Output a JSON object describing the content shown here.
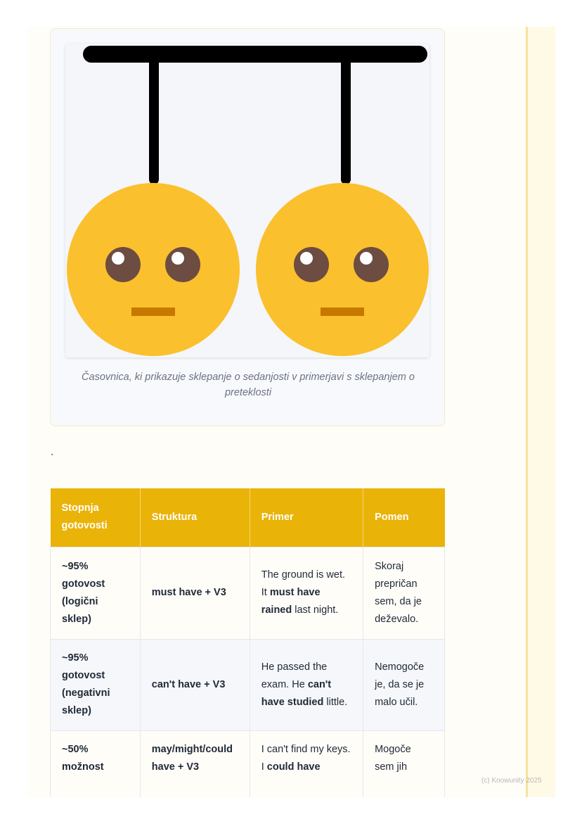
{
  "figure": {
    "caption": "Časovnica, ki prikazuje sklepanje o sedanjosti v primerjavi s sklepanjem o preteklosti",
    "colors": {
      "face": "#fbc02d",
      "eye": "#6d4c41",
      "mouth": "#c77800"
    }
  },
  "stray_mark": "`",
  "table": {
    "headers": [
      "Stopnja gotovosti",
      "Struktura",
      "Primer",
      "Pomen"
    ],
    "rows": [
      {
        "level": "~95% gotovost (logični sklep)",
        "structure": "must have + V3",
        "example_pre": "The ground is wet. It ",
        "example_bold": "must have rained",
        "example_post": " last night.",
        "meaning": "Skoraj prepričan sem, da je deževalo."
      },
      {
        "level": "~95% gotovost (negativni sklep)",
        "structure": "can't have + V3",
        "example_pre": "He passed the exam. He ",
        "example_bold": "can't have studied",
        "example_post": " little.",
        "meaning": "Nemogoče je, da se je malo učil."
      },
      {
        "level": "~50% možnost",
        "structure": "may/might/could have + V3",
        "example_pre": "I can't find my keys. I ",
        "example_bold": "could have",
        "example_post": "",
        "meaning": "Mogoče sem jih"
      }
    ]
  },
  "footer": "(c) Knowunity 2025",
  "accent": "#eab308"
}
